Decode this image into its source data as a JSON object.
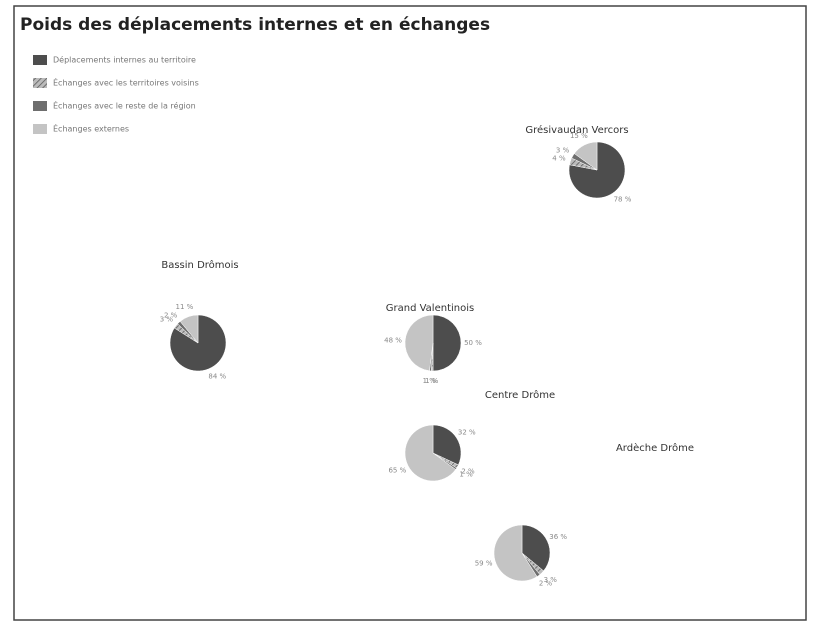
{
  "chart_data": {
    "type": "pie",
    "title": "Poids des déplacements internes et en échanges",
    "legend": {
      "position": "top-left"
    },
    "series": [
      {
        "name": "Déplacements internes au territoire",
        "color": "#4d4d4d"
      },
      {
        "name": "Échanges avec les territoires voisins",
        "color": "#8f8f8f"
      },
      {
        "name": "Échanges avec le reste de la région",
        "color": "#6e6e6e"
      },
      {
        "name": "Échanges externes",
        "color": "#c4c4c4"
      }
    ],
    "pies": [
      {
        "name": "Grésivaudan Vercors",
        "values": [
          78,
          4,
          3,
          15
        ],
        "value_labels": [
          "78 %",
          "4 %",
          "3 %",
          "15 %"
        ]
      },
      {
        "name": "Bassin Drômois",
        "values": [
          84,
          3,
          2,
          11
        ],
        "value_labels": [
          "84 %",
          "3 %",
          "2 %",
          "11 %"
        ]
      },
      {
        "name": "Grand Valentinois",
        "values": [
          50,
          1,
          1,
          48
        ],
        "value_labels": [
          "50 %",
          "1 %",
          "1 %",
          "48 %"
        ]
      },
      {
        "name": "Centre Drôme",
        "values": [
          32,
          2,
          1,
          65
        ],
        "value_labels": [
          "32 %",
          "2 %",
          "1 %",
          "65 %"
        ]
      },
      {
        "name": "Ardèche Drôme",
        "values": [
          36,
          3,
          2,
          59
        ],
        "value_labels": [
          "36 %",
          "3 %",
          "2 %",
          "59 %"
        ]
      }
    ]
  }
}
